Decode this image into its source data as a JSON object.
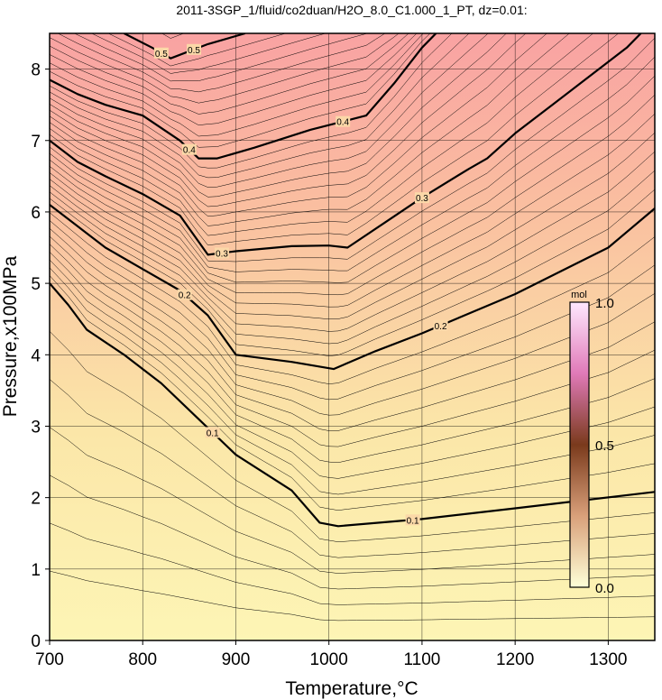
{
  "chart_data": {
    "type": "heatmap",
    "title": "2011-3SGP_1/fluid/co2duan/H2O_8.0_C1.000_1_PT, dz=0.01:",
    "xlabel": "Temperature,°C",
    "ylabel": "Pressure,x100MPa",
    "xlim": [
      700,
      1350
    ],
    "ylim": [
      0,
      8.5
    ],
    "x_ticks": [
      "700",
      "800",
      "900",
      "1000",
      "1100",
      "1200",
      "1300"
    ],
    "y_ticks": [
      "0",
      "1",
      "2",
      "3",
      "4",
      "5",
      "6",
      "7",
      "8"
    ],
    "grid": true,
    "contour_interval": 0.01,
    "major_contours": [
      {
        "level": 0.1,
        "label": "0.1",
        "points": [
          [
            700,
            5.0
          ],
          [
            720,
            4.7
          ],
          [
            740,
            4.35
          ],
          [
            780,
            4.0
          ],
          [
            820,
            3.6
          ],
          [
            860,
            3.1
          ],
          [
            900,
            2.6
          ],
          [
            960,
            2.1
          ],
          [
            990,
            1.65
          ],
          [
            1010,
            1.6
          ],
          [
            1100,
            1.7
          ],
          [
            1200,
            1.85
          ],
          [
            1350,
            2.08
          ]
        ]
      },
      {
        "level": 0.2,
        "label": "0.2",
        "points": [
          [
            700,
            6.1
          ],
          [
            730,
            5.8
          ],
          [
            760,
            5.5
          ],
          [
            800,
            5.2
          ],
          [
            840,
            4.9
          ],
          [
            870,
            4.55
          ],
          [
            900,
            4.0
          ],
          [
            960,
            3.9
          ],
          [
            1005,
            3.8
          ],
          [
            1050,
            4.05
          ],
          [
            1100,
            4.3
          ],
          [
            1200,
            4.85
          ],
          [
            1300,
            5.5
          ],
          [
            1350,
            6.05
          ]
        ]
      },
      {
        "level": 0.3,
        "label": "0.3",
        "points": [
          [
            700,
            7.0
          ],
          [
            730,
            6.7
          ],
          [
            760,
            6.5
          ],
          [
            800,
            6.25
          ],
          [
            840,
            5.95
          ],
          [
            870,
            5.4
          ],
          [
            900,
            5.45
          ],
          [
            960,
            5.52
          ],
          [
            1000,
            5.53
          ],
          [
            1020,
            5.5
          ],
          [
            1060,
            5.85
          ],
          [
            1100,
            6.2
          ],
          [
            1150,
            6.6
          ],
          [
            1170,
            6.75
          ],
          [
            1200,
            7.1
          ],
          [
            1240,
            7.5
          ],
          [
            1280,
            7.9
          ],
          [
            1320,
            8.3
          ],
          [
            1335,
            8.5
          ]
        ]
      },
      {
        "level": 0.4,
        "label": "0.4",
        "points": [
          [
            700,
            7.85
          ],
          [
            730,
            7.65
          ],
          [
            760,
            7.5
          ],
          [
            800,
            7.35
          ],
          [
            840,
            7.0
          ],
          [
            860,
            6.75
          ],
          [
            880,
            6.75
          ],
          [
            920,
            6.9
          ],
          [
            980,
            7.15
          ],
          [
            1040,
            7.35
          ],
          [
            1070,
            7.8
          ],
          [
            1100,
            8.3
          ],
          [
            1115,
            8.5
          ]
        ]
      },
      {
        "level": 0.5,
        "label": "0.5",
        "points": [
          [
            780,
            8.5
          ],
          [
            810,
            8.3
          ],
          [
            830,
            8.15
          ],
          [
            870,
            8.35
          ],
          [
            910,
            8.5
          ]
        ]
      }
    ],
    "colorbar": {
      "unit": "mol",
      "min": "0.0",
      "mid": "0.5",
      "max": "1.0",
      "range": [
        0,
        1
      ]
    },
    "colors": {
      "low": "#fdf5b5",
      "mid": "#fcd2a0",
      "high": "#f9a2a2",
      "cb_low": "#feffd8",
      "cb_mid": "#7a3a1c",
      "cb_high": "#ffe8ff"
    }
  }
}
